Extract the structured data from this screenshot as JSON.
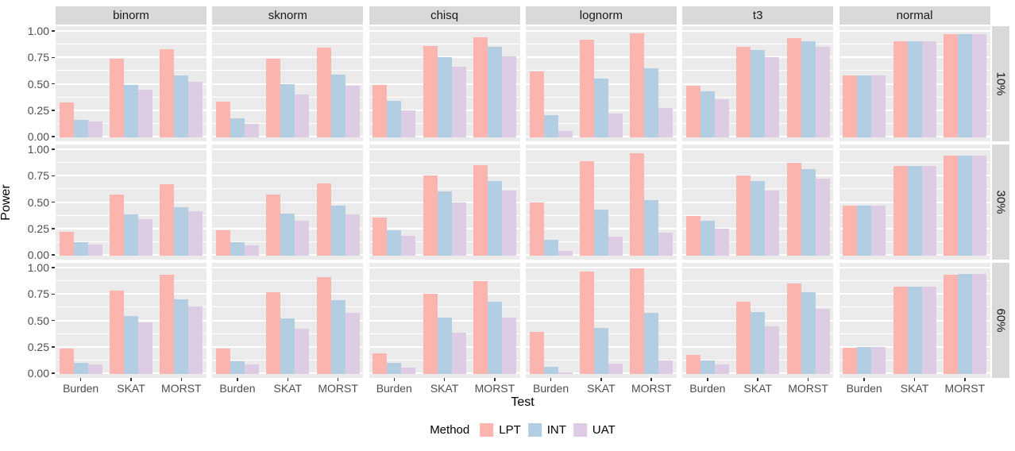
{
  "figure": {
    "y_axis_title": "Power",
    "x_axis_title": "Test",
    "y_tick_labels": [
      "1.00",
      "0.75",
      "0.50",
      "0.25",
      "0.00"
    ],
    "x_tick_labels": [
      "Burden",
      "SKAT",
      "MORST"
    ]
  },
  "legend": {
    "title": "Method",
    "entries": [
      {
        "label": "LPT",
        "color": "#FBB4AE"
      },
      {
        "label": "INT",
        "color": "#B3CDE3"
      },
      {
        "label": "UAT",
        "color": "#DECBE4"
      }
    ]
  },
  "colors": {
    "panel_background": "#EBEBEB",
    "strip_background": "#D9D9D9",
    "gridline": "#FFFFFF",
    "tick_text": "#4D4D4D",
    "strip_text": "#1A1A1A",
    "lpt": "#FBB4AE",
    "int": "#B3CDE3",
    "uat": "#DECBE4"
  },
  "chart_data": {
    "type": "bar",
    "layout": "facet_grid",
    "facet_columns": [
      "binorm",
      "sknorm",
      "chisq",
      "lognorm",
      "t3",
      "normal"
    ],
    "facet_rows": [
      "10%",
      "30%",
      "60%"
    ],
    "categories": [
      "Burden",
      "SKAT",
      "MORST"
    ],
    "series_names": [
      "LPT",
      "INT",
      "UAT"
    ],
    "xlabel": "Test",
    "ylabel": "Power",
    "ylim": [
      0,
      1
    ],
    "y_major_ticks": [
      0,
      0.25,
      0.5,
      0.75,
      1.0
    ],
    "y_minor_ticks": [
      0.125,
      0.375,
      0.625,
      0.875
    ],
    "grid": true,
    "legend_position": "bottom",
    "values": {
      "10%": {
        "binorm": {
          "Burden": [
            0.32,
            0.16,
            0.14
          ],
          "SKAT": [
            0.74,
            0.49,
            0.44
          ],
          "MORST": [
            0.83,
            0.58,
            0.52
          ]
        },
        "sknorm": {
          "Burden": [
            0.33,
            0.17,
            0.12
          ],
          "SKAT": [
            0.74,
            0.5,
            0.4
          ],
          "MORST": [
            0.84,
            0.59,
            0.48
          ]
        },
        "chisq": {
          "Burden": [
            0.49,
            0.34,
            0.25
          ],
          "SKAT": [
            0.86,
            0.75,
            0.66
          ],
          "MORST": [
            0.94,
            0.85,
            0.76
          ]
        },
        "lognorm": {
          "Burden": [
            0.62,
            0.2,
            0.05
          ],
          "SKAT": [
            0.92,
            0.55,
            0.22
          ],
          "MORST": [
            0.98,
            0.65,
            0.27
          ]
        },
        "t3": {
          "Burden": [
            0.48,
            0.43,
            0.35
          ],
          "SKAT": [
            0.85,
            0.82,
            0.75
          ],
          "MORST": [
            0.93,
            0.9,
            0.85
          ]
        },
        "normal": {
          "Burden": [
            0.58,
            0.58,
            0.58
          ],
          "SKAT": [
            0.9,
            0.9,
            0.9
          ],
          "MORST": [
            0.97,
            0.97,
            0.97
          ]
        }
      },
      "30%": {
        "binorm": {
          "Burden": [
            0.22,
            0.12,
            0.1
          ],
          "SKAT": [
            0.57,
            0.38,
            0.34
          ],
          "MORST": [
            0.67,
            0.45,
            0.41
          ]
        },
        "sknorm": {
          "Burden": [
            0.23,
            0.12,
            0.09
          ],
          "SKAT": [
            0.57,
            0.39,
            0.32
          ],
          "MORST": [
            0.68,
            0.47,
            0.38
          ]
        },
        "chisq": {
          "Burden": [
            0.35,
            0.23,
            0.18
          ],
          "SKAT": [
            0.75,
            0.6,
            0.5
          ],
          "MORST": [
            0.85,
            0.7,
            0.61
          ]
        },
        "lognorm": {
          "Burden": [
            0.5,
            0.14,
            0.04
          ],
          "SKAT": [
            0.89,
            0.43,
            0.17
          ],
          "MORST": [
            0.96,
            0.52,
            0.21
          ]
        },
        "t3": {
          "Burden": [
            0.37,
            0.32,
            0.25
          ],
          "SKAT": [
            0.75,
            0.7,
            0.61
          ],
          "MORST": [
            0.87,
            0.81,
            0.72
          ]
        },
        "normal": {
          "Burden": [
            0.47,
            0.47,
            0.47
          ],
          "SKAT": [
            0.84,
            0.84,
            0.84
          ],
          "MORST": [
            0.94,
            0.94,
            0.94
          ]
        }
      },
      "60%": {
        "binorm": {
          "Burden": [
            0.23,
            0.1,
            0.08
          ],
          "SKAT": [
            0.78,
            0.54,
            0.48
          ],
          "MORST": [
            0.93,
            0.7,
            0.63
          ]
        },
        "sknorm": {
          "Burden": [
            0.23,
            0.11,
            0.08
          ],
          "SKAT": [
            0.77,
            0.52,
            0.42
          ],
          "MORST": [
            0.91,
            0.69,
            0.57
          ]
        },
        "chisq": {
          "Burden": [
            0.19,
            0.1,
            0.05
          ],
          "SKAT": [
            0.75,
            0.53,
            0.38
          ],
          "MORST": [
            0.87,
            0.68,
            0.53
          ]
        },
        "lognorm": {
          "Burden": [
            0.39,
            0.06,
            0.01
          ],
          "SKAT": [
            0.96,
            0.43,
            0.09
          ],
          "MORST": [
            0.99,
            0.57,
            0.12
          ]
        },
        "t3": {
          "Burden": [
            0.17,
            0.12,
            0.08
          ],
          "SKAT": [
            0.68,
            0.58,
            0.44
          ],
          "MORST": [
            0.85,
            0.77,
            0.61
          ]
        },
        "normal": {
          "Burden": [
            0.24,
            0.25,
            0.25
          ],
          "SKAT": [
            0.82,
            0.82,
            0.82
          ],
          "MORST": [
            0.93,
            0.94,
            0.94
          ]
        }
      }
    }
  }
}
